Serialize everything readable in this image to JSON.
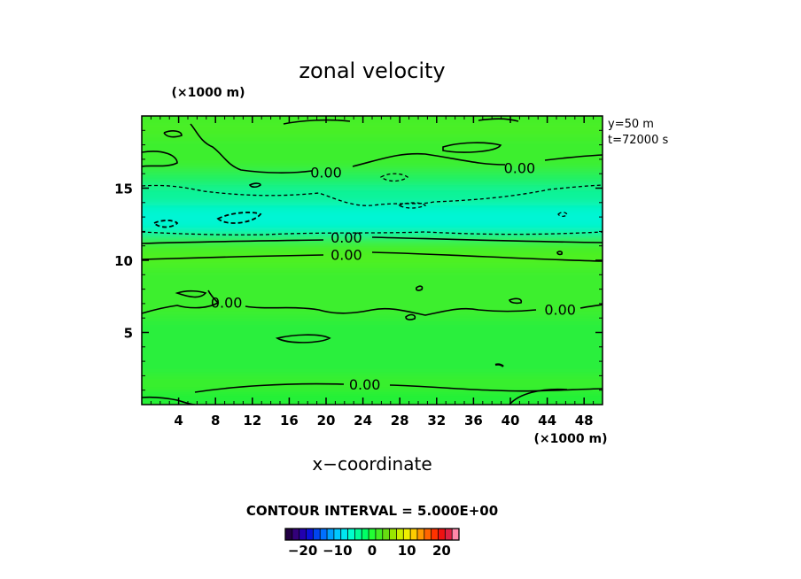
{
  "chart_data": {
    "type": "heatmap",
    "title": "zonal velocity",
    "xlabel": "x−coordinate",
    "x_unit": "(×1000 m)",
    "y_unit": "(×1000 m)",
    "annotations": [
      "y=50 m",
      "t=72000 s"
    ],
    "xlim": [
      0,
      50
    ],
    "ylim": [
      0,
      20
    ],
    "x_ticks": [
      4,
      8,
      12,
      16,
      20,
      24,
      28,
      32,
      36,
      40,
      44,
      48
    ],
    "y_ticks": [
      5,
      10,
      15
    ],
    "contour_interval_label": "CONTOUR INTERVAL = 5.000E+00",
    "contour_labels": [
      {
        "text": "0.00",
        "x": 20.0,
        "y": 16.1
      },
      {
        "text": "0.00",
        "x": 41.0,
        "y": 16.4
      },
      {
        "text": "0.00",
        "x": 22.2,
        "y": 11.6
      },
      {
        "text": "0.00",
        "x": 22.2,
        "y": 10.4
      },
      {
        "text": "0.00",
        "x": 9.2,
        "y": 7.1
      },
      {
        "text": "0.00",
        "x": 45.4,
        "y": 6.6
      },
      {
        "text": "0.00",
        "x": 24.2,
        "y": 1.4
      }
    ],
    "colorbar": {
      "min": -25,
      "max": 25,
      "tick_values": [
        -20,
        -10,
        0,
        10,
        20
      ],
      "tick_labels": [
        "−20",
        "−10",
        "0",
        "10",
        "20"
      ],
      "colors": [
        "#220044",
        "#33007a",
        "#2200b0",
        "#0a10d8",
        "#0044f0",
        "#0070ff",
        "#00a0ff",
        "#00c8ff",
        "#00e6f0",
        "#00ffcc",
        "#00ff99",
        "#00ff66",
        "#22ff33",
        "#44ee22",
        "#66dd11",
        "#99e600",
        "#ccee00",
        "#eeee00",
        "#ffcc00",
        "#ff9900",
        "#ff6600",
        "#ff3300",
        "#ee1111",
        "#dd2244",
        "#ff88aa"
      ]
    },
    "bands": [
      {
        "y": [
          0.0,
          0.9
        ],
        "color": "#1ef03a"
      },
      {
        "y": [
          0.9,
          2.0
        ],
        "color": "#3aef2c"
      },
      {
        "y": [
          2.0,
          6.0
        ],
        "color": "#2cef3c"
      },
      {
        "y": [
          6.0,
          9.5
        ],
        "color": "#3cef2e"
      },
      {
        "y": [
          9.5,
          10.6
        ],
        "color": "#50f020"
      },
      {
        "y": [
          10.6,
          11.4
        ],
        "color": "#44ef28"
      },
      {
        "y": [
          11.4,
          12.0
        ],
        "color": "#18f27a"
      },
      {
        "y": [
          12.0,
          13.8
        ],
        "color": "#00f5d4"
      },
      {
        "y": [
          13.8,
          15.2
        ],
        "color": "#10f39a"
      },
      {
        "y": [
          15.2,
          16.2
        ],
        "color": "#20f060"
      },
      {
        "y": [
          16.2,
          18.5
        ],
        "color": "#3cef2e"
      },
      {
        "y": [
          18.5,
          20.0
        ],
        "color": "#48ef28"
      }
    ]
  }
}
